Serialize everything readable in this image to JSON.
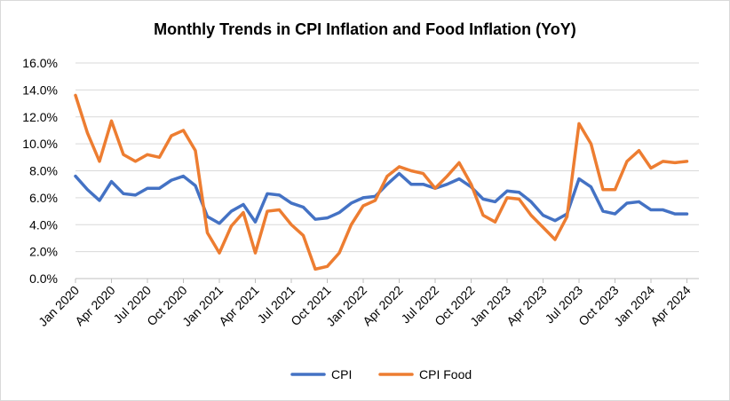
{
  "chart_data": {
    "type": "line",
    "title": "Monthly Trends in CPI Inflation and Food Inflation (YoY)",
    "xlabel": "",
    "ylabel": "",
    "ylim": [
      0,
      0.16
    ],
    "yticks": [
      "0.0%",
      "2.0%",
      "4.0%",
      "6.0%",
      "8.0%",
      "10.0%",
      "12.0%",
      "14.0%",
      "16.0%"
    ],
    "grid": true,
    "legend_position": "bottom",
    "x": [
      "Jan 2020",
      "Feb 2020",
      "Mar 2020",
      "Apr 2020",
      "May 2020",
      "Jun 2020",
      "Jul 2020",
      "Aug 2020",
      "Sep 2020",
      "Oct 2020",
      "Nov 2020",
      "Dec 2020",
      "Jan 2021",
      "Feb 2021",
      "Mar 2021",
      "Apr 2021",
      "May 2021",
      "Jun 2021",
      "Jul 2021",
      "Aug 2021",
      "Sep 2021",
      "Oct 2021",
      "Nov 2021",
      "Dec 2021",
      "Jan 2022",
      "Feb 2022",
      "Mar 2022",
      "Apr 2022",
      "May 2022",
      "Jun 2022",
      "Jul 2022",
      "Aug 2022",
      "Sep 2022",
      "Oct 2022",
      "Nov 2022",
      "Dec 2022",
      "Jan 2023",
      "Feb 2023",
      "Mar 2023",
      "Apr 2023",
      "May 2023",
      "Jun 2023",
      "Jul 2023",
      "Aug 2023",
      "Sep 2023",
      "Oct 2023",
      "Nov 2023",
      "Dec 2023",
      "Jan 2024",
      "Feb 2024",
      "Mar 2024",
      "Apr 2024",
      "May 2024"
    ],
    "xtick_labels": [
      "Jan 2020",
      "Apr 2020",
      "Jul 2020",
      "Oct 2020",
      "Jan 2021",
      "Apr 2021",
      "Jul 2021",
      "Oct 2021",
      "Jan 2022",
      "Apr 2022",
      "Jul 2022",
      "Oct 2022",
      "Jan 2023",
      "Apr 2023",
      "Jul 2023",
      "Oct 2023",
      "Jan 2024",
      "Apr 2024"
    ],
    "series": [
      {
        "name": "CPI",
        "color": "#4472C4",
        "values": [
          0.076,
          0.066,
          0.058,
          0.072,
          0.063,
          0.062,
          0.067,
          0.067,
          0.073,
          0.076,
          0.069,
          0.046,
          0.041,
          0.05,
          0.055,
          0.042,
          0.063,
          0.062,
          0.056,
          0.053,
          0.044,
          0.045,
          0.049,
          0.056,
          0.06,
          0.061,
          0.07,
          0.078,
          0.07,
          0.07,
          0.067,
          0.07,
          0.074,
          0.068,
          0.059,
          0.057,
          0.065,
          0.064,
          0.057,
          0.047,
          0.043,
          0.048,
          0.074,
          0.068,
          0.05,
          0.048,
          0.056,
          0.057,
          0.051,
          0.051,
          0.048,
          0.048,
          null
        ]
      },
      {
        "name": "CPI Food",
        "color": "#ED7D31",
        "values": [
          0.136,
          0.108,
          0.087,
          0.117,
          0.092,
          0.087,
          0.092,
          0.09,
          0.106,
          0.11,
          0.095,
          0.034,
          0.019,
          0.039,
          0.049,
          0.019,
          0.05,
          0.051,
          0.04,
          0.032,
          0.007,
          0.009,
          0.019,
          0.04,
          0.054,
          0.058,
          0.076,
          0.083,
          0.08,
          0.078,
          0.067,
          0.076,
          0.086,
          0.07,
          0.047,
          0.042,
          0.06,
          0.059,
          0.047,
          0.038,
          0.029,
          0.046,
          0.115,
          0.1,
          0.066,
          0.066,
          0.087,
          0.095,
          0.082,
          0.087,
          0.086,
          0.087,
          null
        ]
      }
    ]
  }
}
